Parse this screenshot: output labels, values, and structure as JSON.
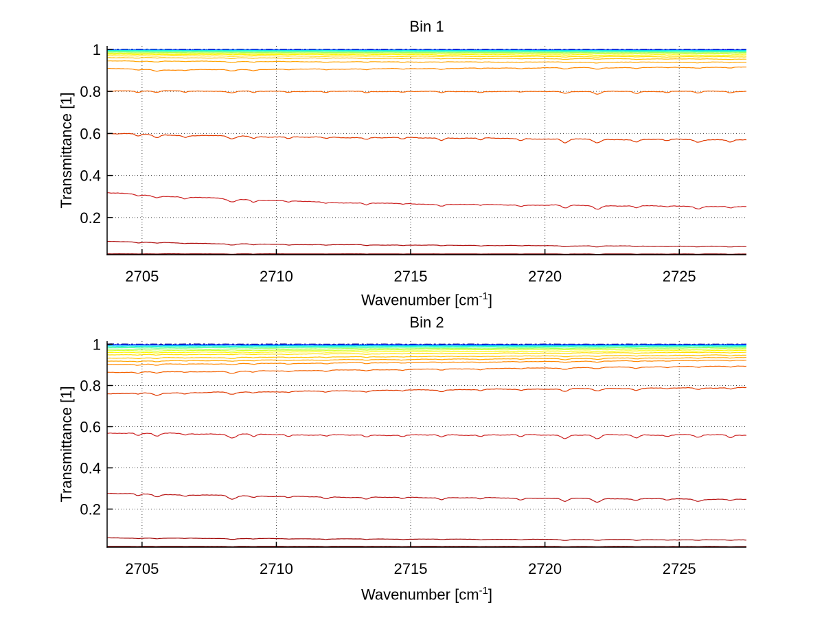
{
  "figure": {
    "background": "#ffffff",
    "axis_color": "#000000",
    "grid_color": "#000000",
    "text_color": "#000000"
  },
  "labels": {
    "ylabel": "Transmittance [1]",
    "xlabel_pre": "Wavenumber [cm",
    "xlabel_sup": "-1",
    "xlabel_post": "]"
  },
  "absorption_features": [
    {
      "x": 2704.85,
      "w": 0.13,
      "d": 0.009
    },
    {
      "x": 2705.55,
      "w": 0.16,
      "d": 0.013
    },
    {
      "x": 2706.6,
      "w": 0.12,
      "d": 0.007
    },
    {
      "x": 2708.35,
      "w": 0.2,
      "d": 0.016
    },
    {
      "x": 2709.15,
      "w": 0.13,
      "d": 0.01
    },
    {
      "x": 2710.45,
      "w": 0.12,
      "d": 0.007
    },
    {
      "x": 2711.85,
      "w": 0.14,
      "d": 0.008
    },
    {
      "x": 2713.35,
      "w": 0.13,
      "d": 0.01
    },
    {
      "x": 2714.7,
      "w": 0.12,
      "d": 0.007
    },
    {
      "x": 2716.15,
      "w": 0.14,
      "d": 0.009
    },
    {
      "x": 2717.6,
      "w": 0.12,
      "d": 0.007
    },
    {
      "x": 2719.1,
      "w": 0.13,
      "d": 0.008
    },
    {
      "x": 2720.75,
      "w": 0.17,
      "d": 0.015
    },
    {
      "x": 2721.95,
      "w": 0.19,
      "d": 0.017
    },
    {
      "x": 2723.4,
      "w": 0.15,
      "d": 0.012
    },
    {
      "x": 2724.55,
      "w": 0.12,
      "d": 0.007
    },
    {
      "x": 2725.7,
      "w": 0.17,
      "d": 0.012
    },
    {
      "x": 2726.9,
      "w": 0.14,
      "d": 0.01
    }
  ],
  "chart_data": [
    {
      "type": "line",
      "title": "Bin 1",
      "xlabel": "Wavenumber [cm^-1]",
      "ylabel": "Transmittance [1]",
      "xlim": [
        2703.7,
        2727.5
      ],
      "ylim": [
        0.023,
        1.016
      ],
      "x_ticks": [
        2705,
        2710,
        2715,
        2720,
        2725
      ],
      "x_tick_labels": [
        "2705",
        "2710",
        "2715",
        "2720",
        "2725"
      ],
      "y_ticks": [
        0.2,
        0.4,
        0.6,
        0.8,
        1
      ],
      "y_tick_labels": [
        "0.2",
        "0.4",
        "0.6",
        "0.8",
        "1"
      ],
      "grid": true,
      "legend": "none",
      "series": [
        {
          "name": "spectrum-01",
          "color": "#000087",
          "style": "dashdot",
          "width": 1.5,
          "noise": 0.3,
          "points": [
            [
              2703.7,
              1.0005
            ],
            [
              2727.5,
              1.0
            ]
          ]
        },
        {
          "name": "spectrum-02",
          "color": "#0022ff",
          "style": "solid",
          "width": 1.2,
          "noise": 0.4,
          "points": [
            [
              2703.7,
              0.9985
            ],
            [
              2727.5,
              0.9983
            ]
          ]
        },
        {
          "name": "spectrum-03",
          "color": "#00ccff",
          "style": "solid",
          "width": 1.2,
          "noise": 0.5,
          "points": [
            [
              2703.7,
              0.996
            ],
            [
              2727.5,
              0.995
            ]
          ]
        },
        {
          "name": "spectrum-04",
          "color": "#22ffd5",
          "style": "solid",
          "width": 1.2,
          "noise": 0.6,
          "points": [
            [
              2703.7,
              0.9935
            ],
            [
              2727.5,
              0.992
            ]
          ]
        },
        {
          "name": "spectrum-05",
          "color": "#60ff9a",
          "style": "solid",
          "width": 1.2,
          "noise": 0.7,
          "points": [
            [
              2703.7,
              0.99
            ],
            [
              2727.5,
              0.9882
            ]
          ]
        },
        {
          "name": "spectrum-06",
          "color": "#9dff5e",
          "style": "solid",
          "width": 1.2,
          "noise": 0.8,
          "points": [
            [
              2703.7,
              0.9862
            ],
            [
              2727.5,
              0.984
            ]
          ]
        },
        {
          "name": "spectrum-07",
          "color": "#d4ff2a",
          "style": "solid",
          "width": 1.2,
          "noise": 0.9,
          "points": [
            [
              2703.7,
              0.9818
            ],
            [
              2727.5,
              0.979
            ]
          ]
        },
        {
          "name": "spectrum-08",
          "color": "#fff600",
          "style": "solid",
          "width": 1.2,
          "noise": 1.0,
          "points": [
            [
              2703.7,
              0.9765
            ],
            [
              2727.5,
              0.9726
            ]
          ]
        },
        {
          "name": "spectrum-09",
          "color": "#ffdd00",
          "style": "solid",
          "width": 1.2,
          "noise": 1.0,
          "points": [
            [
              2703.7,
              0.9698
            ],
            [
              2727.5,
              0.9645
            ]
          ]
        },
        {
          "name": "spectrum-10",
          "color": "#ffc100",
          "style": "solid",
          "width": 1.2,
          "noise": 1.0,
          "points": [
            [
              2703.7,
              0.9607
            ],
            [
              2727.5,
              0.9537
            ]
          ]
        },
        {
          "name": "spectrum-11",
          "color": "#ffa500",
          "style": "solid",
          "width": 1.2,
          "noise": 1.0,
          "points": [
            [
              2703.7,
              0.9447
            ],
            [
              2712,
              0.9408
            ],
            [
              2727.5,
              0.9385
            ]
          ]
        },
        {
          "name": "spectrum-12",
          "color": "#ff8700",
          "style": "solid",
          "width": 1.2,
          "noise": 1.0,
          "points": [
            [
              2703.7,
              0.9085
            ],
            [
              2705.8,
              0.902
            ],
            [
              2712,
              0.906
            ],
            [
              2720,
              0.912
            ],
            [
              2727.5,
              0.915
            ]
          ]
        },
        {
          "name": "spectrum-13",
          "color": "#f46200",
          "style": "solid",
          "width": 1.2,
          "noise": 1.0,
          "points": [
            [
              2703.7,
              0.803
            ],
            [
              2710,
              0.8005
            ],
            [
              2718,
              0.7995
            ],
            [
              2727.5,
              0.8005
            ]
          ]
        },
        {
          "name": "spectrum-14",
          "color": "#e03a00",
          "style": "solid",
          "width": 1.2,
          "noise": 1.1,
          "points": [
            [
              2703.7,
              0.6
            ],
            [
              2706,
              0.592
            ],
            [
              2711,
              0.582
            ],
            [
              2717,
              0.578
            ],
            [
              2722,
              0.572
            ],
            [
              2727.5,
              0.57
            ]
          ]
        },
        {
          "name": "spectrum-15",
          "color": "#cc2222",
          "style": "solid",
          "width": 1.2,
          "noise": 1.1,
          "points": [
            [
              2703.7,
              0.318
            ],
            [
              2706,
              0.3
            ],
            [
              2709,
              0.285
            ],
            [
              2712,
              0.272
            ],
            [
              2716,
              0.263
            ],
            [
              2721,
              0.258
            ],
            [
              2727.5,
              0.251
            ]
          ]
        },
        {
          "name": "spectrum-16",
          "color": "#ae0d0d",
          "style": "solid",
          "width": 1.2,
          "noise": 0.8,
          "points": [
            [
              2703.7,
              0.087
            ],
            [
              2706.5,
              0.078
            ],
            [
              2710,
              0.072
            ],
            [
              2716,
              0.068
            ],
            [
              2727.5,
              0.062
            ]
          ]
        },
        {
          "name": "spectrum-17",
          "color": "#860000",
          "style": "solid",
          "width": 1.4,
          "noise": 0.3,
          "points": [
            [
              2703.7,
              0.027
            ],
            [
              2727.5,
              0.026
            ]
          ]
        }
      ]
    },
    {
      "type": "line",
      "title": "Bin 2",
      "xlabel": "Wavenumber [cm^-1]",
      "ylabel": "Transmittance [1]",
      "xlim": [
        2703.7,
        2727.5
      ],
      "ylim": [
        0.015,
        1.015
      ],
      "x_ticks": [
        2705,
        2710,
        2715,
        2720,
        2725
      ],
      "x_tick_labels": [
        "2705",
        "2710",
        "2715",
        "2720",
        "2725"
      ],
      "y_ticks": [
        0.2,
        0.4,
        0.6,
        0.8,
        1
      ],
      "y_tick_labels": [
        "0.2",
        "0.4",
        "0.6",
        "0.8",
        "1"
      ],
      "grid": true,
      "legend": "none",
      "series": [
        {
          "name": "spectrum-01",
          "color": "#000087",
          "style": "dashdot",
          "width": 1.6,
          "noise": 0.5,
          "points": [
            [
              2703.7,
              1.0005
            ],
            [
              2727.5,
              1.0
            ]
          ]
        },
        {
          "name": "spectrum-02",
          "color": "#0022ff",
          "style": "solid",
          "width": 1.2,
          "noise": 0.5,
          "points": [
            [
              2703.7,
              0.998
            ],
            [
              2727.5,
              0.9982
            ]
          ]
        },
        {
          "name": "spectrum-03",
          "color": "#00ccff",
          "style": "solid",
          "width": 1.2,
          "noise": 0.7,
          "points": [
            [
              2703.7,
              0.9925
            ],
            [
              2727.5,
              0.9948
            ]
          ]
        },
        {
          "name": "spectrum-04",
          "color": "#22ffd5",
          "style": "solid",
          "width": 1.2,
          "noise": 0.8,
          "points": [
            [
              2703.7,
              0.988
            ],
            [
              2727.5,
              0.9915
            ]
          ]
        },
        {
          "name": "spectrum-05",
          "color": "#60ff9a",
          "style": "solid",
          "width": 1.2,
          "noise": 0.9,
          "points": [
            [
              2703.7,
              0.9825
            ],
            [
              2727.5,
              0.9876
            ]
          ]
        },
        {
          "name": "spectrum-06",
          "color": "#9dff5e",
          "style": "solid",
          "width": 1.2,
          "noise": 1.0,
          "points": [
            [
              2703.7,
              0.976
            ],
            [
              2727.5,
              0.9828
            ]
          ]
        },
        {
          "name": "spectrum-07",
          "color": "#d4ff2a",
          "style": "solid",
          "width": 1.2,
          "noise": 1.0,
          "points": [
            [
              2703.7,
              0.9685
            ],
            [
              2727.5,
              0.9772
            ]
          ]
        },
        {
          "name": "spectrum-08",
          "color": "#fff600",
          "style": "solid",
          "width": 1.2,
          "noise": 1.0,
          "points": [
            [
              2703.7,
              0.9595
            ],
            [
              2727.5,
              0.97
            ]
          ]
        },
        {
          "name": "spectrum-09",
          "color": "#ffdd00",
          "style": "solid",
          "width": 1.2,
          "noise": 1.0,
          "points": [
            [
              2703.7,
              0.949
            ],
            [
              2727.5,
              0.9612
            ]
          ]
        },
        {
          "name": "spectrum-10",
          "color": "#ffc100",
          "style": "solid",
          "width": 1.2,
          "noise": 1.0,
          "points": [
            [
              2703.7,
              0.933
            ],
            [
              2727.5,
              0.948
            ]
          ]
        },
        {
          "name": "spectrum-11",
          "color": "#ffa500",
          "style": "solid",
          "width": 1.2,
          "noise": 1.0,
          "points": [
            [
              2703.7,
              0.918
            ],
            [
              2727.5,
              0.936
            ]
          ]
        },
        {
          "name": "spectrum-12",
          "color": "#ff8700",
          "style": "solid",
          "width": 1.2,
          "noise": 1.0,
          "points": [
            [
              2703.7,
              0.902
            ],
            [
              2710,
              0.907
            ],
            [
              2727.5,
              0.923
            ]
          ]
        },
        {
          "name": "spectrum-13",
          "color": "#f46200",
          "style": "solid",
          "width": 1.2,
          "noise": 1.0,
          "points": [
            [
              2703.7,
              0.864
            ],
            [
              2708,
              0.868
            ],
            [
              2718,
              0.882
            ],
            [
              2727.5,
              0.895
            ]
          ]
        },
        {
          "name": "spectrum-14",
          "color": "#e03a00",
          "style": "solid",
          "width": 1.2,
          "noise": 1.1,
          "points": [
            [
              2703.7,
              0.76
            ],
            [
              2708.5,
              0.768
            ],
            [
              2716,
              0.779
            ],
            [
              2727.5,
              0.79
            ]
          ]
        },
        {
          "name": "spectrum-15",
          "color": "#cc2222",
          "style": "solid",
          "width": 1.2,
          "noise": 1.1,
          "points": [
            [
              2703.7,
              0.57
            ],
            [
              2708,
              0.564
            ],
            [
              2712.5,
              0.559
            ],
            [
              2720,
              0.56
            ],
            [
              2727.5,
              0.56
            ]
          ]
        },
        {
          "name": "spectrum-16",
          "color": "#b81414",
          "style": "solid",
          "width": 1.2,
          "noise": 1.0,
          "points": [
            [
              2703.7,
              0.276
            ],
            [
              2707,
              0.268
            ],
            [
              2712,
              0.258
            ],
            [
              2718,
              0.254
            ],
            [
              2727.5,
              0.247
            ]
          ]
        },
        {
          "name": "spectrum-17",
          "color": "#a00505",
          "style": "solid",
          "width": 1.2,
          "noise": 0.7,
          "points": [
            [
              2703.7,
              0.06
            ],
            [
              2712,
              0.055
            ],
            [
              2727.5,
              0.05
            ]
          ]
        },
        {
          "name": "spectrum-18",
          "color": "#860000",
          "style": "solid",
          "width": 1.4,
          "noise": 0.3,
          "points": [
            [
              2703.7,
              0.0185
            ],
            [
              2727.5,
              0.0178
            ]
          ]
        }
      ]
    }
  ]
}
